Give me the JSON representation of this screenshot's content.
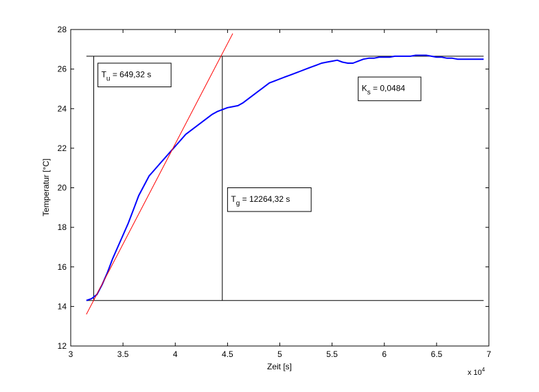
{
  "chart_data": {
    "type": "line",
    "title": "",
    "xlabel": "Zeit [s]",
    "ylabel": "Temperatur [°C]",
    "x_exponent_label": "x 10",
    "x_exponent_power": "4",
    "xlim": [
      3,
      7
    ],
    "ylim": [
      12,
      28
    ],
    "xticks": [
      3,
      3.5,
      4,
      4.5,
      5,
      5.5,
      6,
      6.5,
      7
    ],
    "xtick_labels": [
      "3",
      "3.5",
      "4",
      "4.5",
      "5",
      "5.5",
      "6",
      "6.5",
      "7"
    ],
    "yticks": [
      12,
      14,
      16,
      18,
      20,
      22,
      24,
      26,
      28
    ],
    "ytick_labels": [
      "12",
      "14",
      "16",
      "18",
      "20",
      "22",
      "24",
      "26",
      "28"
    ],
    "grid": false,
    "series": [
      {
        "color": "#0000ff",
        "x": [
          3.15,
          3.2,
          3.25,
          3.3,
          3.35,
          3.4,
          3.45,
          3.5,
          3.55,
          3.6,
          3.65,
          3.7,
          3.75,
          3.8,
          3.85,
          3.9,
          3.95,
          4.0,
          4.05,
          4.1,
          4.15,
          4.2,
          4.25,
          4.3,
          4.35,
          4.4,
          4.45,
          4.5,
          4.55,
          4.6,
          4.65,
          4.7,
          4.75,
          4.8,
          4.85,
          4.9,
          4.95,
          5.0,
          5.05,
          5.1,
          5.15,
          5.2,
          5.25,
          5.3,
          5.35,
          5.4,
          5.45,
          5.5,
          5.55,
          5.6,
          5.65,
          5.7,
          5.75,
          5.8,
          5.85,
          5.9,
          5.95,
          6.0,
          6.05,
          6.1,
          6.15,
          6.2,
          6.25,
          6.3,
          6.35,
          6.4,
          6.45,
          6.5,
          6.55,
          6.6,
          6.65,
          6.7,
          6.75,
          6.8,
          6.85,
          6.9,
          6.95
        ],
        "y": [
          14.3,
          14.4,
          14.6,
          15.1,
          15.7,
          16.4,
          17.0,
          17.6,
          18.2,
          18.9,
          19.6,
          20.1,
          20.6,
          20.9,
          21.2,
          21.5,
          21.8,
          22.1,
          22.4,
          22.7,
          22.9,
          23.1,
          23.3,
          23.5,
          23.7,
          23.85,
          23.95,
          24.05,
          24.1,
          24.15,
          24.3,
          24.5,
          24.7,
          24.9,
          25.1,
          25.3,
          25.4,
          25.5,
          25.6,
          25.7,
          25.8,
          25.9,
          26.0,
          26.1,
          26.2,
          26.3,
          26.35,
          26.4,
          26.45,
          26.35,
          26.3,
          26.3,
          26.4,
          26.5,
          26.55,
          26.55,
          26.6,
          26.6,
          26.6,
          26.65,
          26.65,
          26.65,
          26.65,
          26.7,
          26.7,
          26.7,
          26.65,
          26.6,
          26.6,
          26.55,
          26.55,
          26.5,
          26.5,
          26.5,
          26.5,
          26.5,
          26.5
        ]
      },
      {
        "color": "#ff0000",
        "x": [
          3.15,
          4.55
        ],
        "y": [
          13.6,
          27.8
        ]
      }
    ],
    "reference_lines": {
      "horizontal": [
        {
          "y": 26.65,
          "x_from": 3.15,
          "x_to": 6.95
        },
        {
          "y": 14.3,
          "x_from": 3.15,
          "x_to": 6.95
        }
      ],
      "vertical": [
        {
          "x": 3.22,
          "y_from": 14.3,
          "y_to": 26.65
        },
        {
          "x": 4.45,
          "y_from": 14.3,
          "y_to": 26.65
        }
      ]
    },
    "annotations": [
      {
        "main": "T",
        "sub": "u",
        "rest": " = 649,32 s",
        "x": 3.26,
        "y": 25.1,
        "x2": 3.96,
        "y2": 26.3
      },
      {
        "main": "T",
        "sub": "g",
        "rest": " = 12264,32 s",
        "x": 4.5,
        "y": 18.8,
        "x2": 5.3,
        "y2": 20.0
      },
      {
        "main": "K",
        "sub": "s",
        "rest": " = 0,0484",
        "x": 5.75,
        "y": 24.4,
        "x2": 6.35,
        "y2": 25.6
      }
    ]
  }
}
